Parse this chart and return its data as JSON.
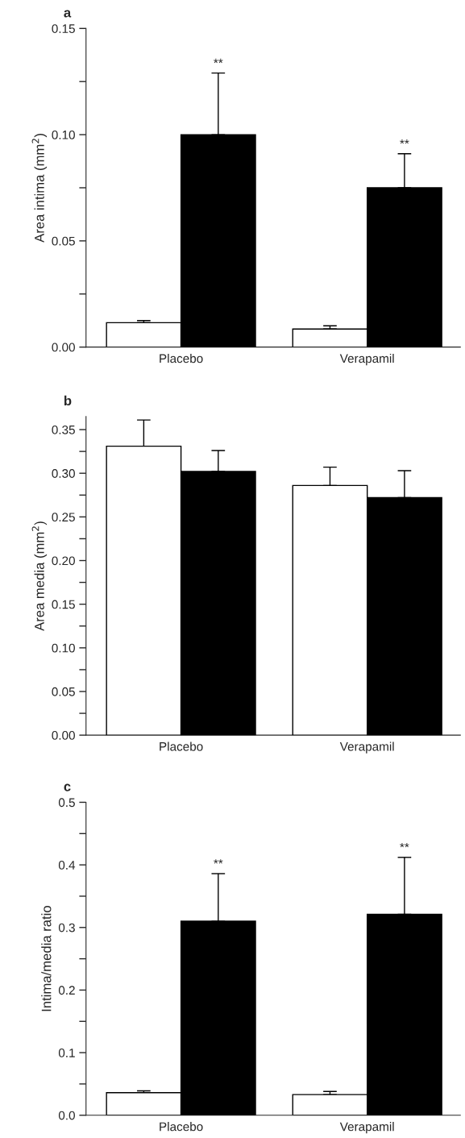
{
  "chart_data": [
    {
      "type": "bar",
      "title": "a",
      "ylabel": "Area intima (mm$^{2}$)",
      "categories": [
        "Placebo",
        "Verapamil"
      ],
      "series": [
        {
          "color": "#ffffff",
          "values": [
            0.0115,
            0.0085
          ],
          "errors": [
            [
              0.0115,
              0.0125
            ],
            [
              0.0085,
              0.01
            ]
          ]
        },
        {
          "color": "#000000",
          "values": [
            0.1,
            0.075
          ],
          "errors": [
            [
              0.1,
              0.129
            ],
            [
              0.075,
              0.091
            ]
          ]
        }
      ],
      "ylim": [
        0,
        0.15
      ],
      "yticks": [
        {
          "value": 0,
          "label": "0.00"
        },
        {
          "value": 0.025,
          "label": null
        },
        {
          "value": 0.05,
          "label": "0.05"
        },
        {
          "value": 0.075,
          "label": null
        },
        {
          "value": 0.1,
          "label": "0.10"
        },
        {
          "value": 0.125,
          "label": null
        },
        {
          "value": 0.15,
          "label": "0.15"
        }
      ],
      "annotations": [
        "**",
        "**"
      ]
    },
    {
      "type": "bar",
      "title": "b",
      "ylabel": "Area media (mm$^{2}$)",
      "categories": [
        "Placebo",
        "Verapamil"
      ],
      "series": [
        {
          "color": "#ffffff",
          "values": [
            0.331,
            0.286
          ],
          "errors": [
            [
              0.331,
              0.361
            ],
            [
              0.286,
              0.307
            ]
          ]
        },
        {
          "color": "#000000",
          "values": [
            0.302,
            0.272
          ],
          "errors": [
            [
              0.302,
              0.326
            ],
            [
              0.272,
              0.303
            ]
          ]
        }
      ],
      "ylim": [
        0,
        0.365
      ],
      "yticks": [
        {
          "value": 0,
          "label": "0.00"
        },
        {
          "value": 0.025,
          "label": null
        },
        {
          "value": 0.05,
          "label": "0.05"
        },
        {
          "value": 0.075,
          "label": null
        },
        {
          "value": 0.1,
          "label": "0.10"
        },
        {
          "value": 0.125,
          "label": null
        },
        {
          "value": 0.15,
          "label": "0.15"
        },
        {
          "value": 0.175,
          "label": null
        },
        {
          "value": 0.2,
          "label": "0.20"
        },
        {
          "value": 0.225,
          "label": null
        },
        {
          "value": 0.25,
          "label": "0.25"
        },
        {
          "value": 0.275,
          "label": null
        },
        {
          "value": 0.3,
          "label": "0.30"
        },
        {
          "value": 0.325,
          "label": null
        },
        {
          "value": 0.35,
          "label": "0.35"
        }
      ]
    },
    {
      "type": "bar",
      "title": "c",
      "ylabel": "Intima/media ratio",
      "categories": [
        "Placebo",
        "Verapamil"
      ],
      "series": [
        {
          "color": "#ffffff",
          "values": [
            0.036,
            0.033
          ],
          "errors": [
            [
              0.036,
              0.039
            ],
            [
              0.033,
              0.038
            ]
          ]
        },
        {
          "color": "#000000",
          "values": [
            0.31,
            0.321
          ],
          "errors": [
            [
              0.31,
              0.386
            ],
            [
              0.321,
              0.412
            ]
          ]
        }
      ],
      "ylim": [
        0,
        0.5
      ],
      "yticks": [
        {
          "value": 0,
          "label": "0.0"
        },
        {
          "value": 0.05,
          "label": null
        },
        {
          "value": 0.1,
          "label": "0.1"
        },
        {
          "value": 0.15,
          "label": null
        },
        {
          "value": 0.2,
          "label": "0.2"
        },
        {
          "value": 0.25,
          "label": null
        },
        {
          "value": 0.3,
          "label": "0.3"
        },
        {
          "value": 0.35,
          "label": null
        },
        {
          "value": 0.4,
          "label": "0.4"
        },
        {
          "value": 0.45,
          "label": null
        },
        {
          "value": 0.5,
          "label": "0.5"
        }
      ],
      "annotations": [
        "**",
        "**"
      ]
    }
  ]
}
